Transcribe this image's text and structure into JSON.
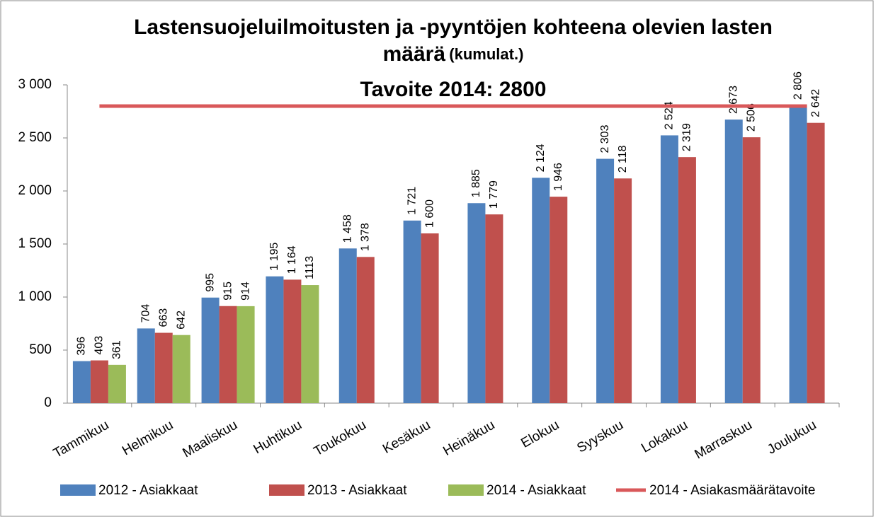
{
  "chart_data": {
    "type": "bar",
    "title": "Lastensuojeluilmoitusten ja -pyyntöjen kohteena olevien lasten",
    "title_2": "määrä",
    "title_note": "(kumulat.)",
    "annotation": "Tavoite 2014: 2800",
    "categories": [
      "Tammikuu",
      "Helmikuu",
      "Maaliskuu",
      "Huhtikuu",
      "Toukokuu",
      "Kesäkuu",
      "Heinäkuu",
      "Elokuu",
      "Syyskuu",
      "Lokakuu",
      "Marraskuu",
      "Joulukuu"
    ],
    "series": [
      {
        "name": "2012 - Asiakkaat",
        "color": "#4f81bd",
        "values": [
          396,
          704,
          995,
          1195,
          1458,
          1721,
          1885,
          2124,
          2303,
          2524,
          2673,
          2806
        ],
        "value_labels": [
          "396",
          "704",
          "995",
          "1 195",
          "1 458",
          "1 721",
          "1 885",
          "2 124",
          "2 303",
          "2 524",
          "2 673",
          "2 806"
        ]
      },
      {
        "name": "2013 - Asiakkaat",
        "color": "#c0504d",
        "values": [
          403,
          663,
          915,
          1164,
          1378,
          1600,
          1779,
          1946,
          2118,
          2319,
          2506,
          2642
        ],
        "value_labels": [
          "403",
          "663",
          "915",
          "1 164",
          "1 378",
          "1 600",
          "1 779",
          "1 946",
          "2 118",
          "2 319",
          "2 506",
          "2 642"
        ]
      },
      {
        "name": "2014 - Asiakkaat",
        "color": "#9bbb59",
        "values": [
          361,
          642,
          914,
          1113,
          null,
          null,
          null,
          null,
          null,
          null,
          null,
          null
        ]
      },
      {
        "name": "2014 - Asiakasmäärätavoite",
        "color": "#d9585a",
        "type": "line",
        "values": [
          2800,
          2800,
          2800,
          2800,
          2800,
          2800,
          2800,
          2800,
          2800,
          2800,
          2800,
          2800
        ]
      }
    ],
    "ylim": [
      0,
      3000
    ],
    "yticks": [
      0,
      500,
      {
        "value": 1000,
        "label": "1 000"
      },
      {
        "value": 1500,
        "label": "1 500"
      },
      {
        "value": 2000,
        "label": "2 000"
      },
      {
        "value": 2500,
        "label": "2 500"
      },
      {
        "value": 3000,
        "label": "3 000"
      }
    ],
    "legend": "bottom"
  }
}
